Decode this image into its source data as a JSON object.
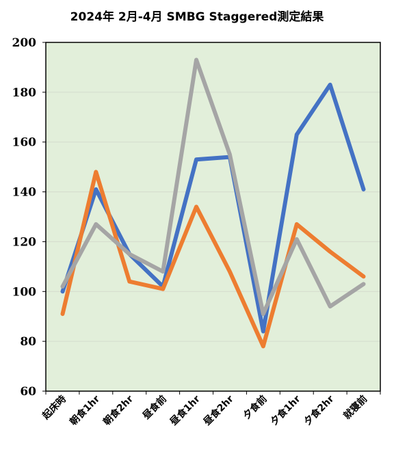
{
  "chart_data": {
    "type": "line",
    "title": "2024年 2月-4月 SMBG Staggered測定結果",
    "xlabel": "",
    "ylabel": "",
    "ylim": [
      60,
      200
    ],
    "yticks": [
      60,
      80,
      100,
      120,
      140,
      160,
      180,
      200
    ],
    "grid": true,
    "background": "#e2efda",
    "categories": [
      "起床時",
      "朝食1hr",
      "朝食2hr",
      "昼食前",
      "昼食1hr",
      "昼食2hr",
      "夕食前",
      "夕食1hr",
      "夕食2hr",
      "就寝前"
    ],
    "series": [
      {
        "color": "#4472c4",
        "values": [
          100,
          141,
          115,
          102,
          153,
          154,
          84,
          163,
          183,
          141
        ]
      },
      {
        "color": "#ed7d31",
        "values": [
          91,
          148,
          104,
          101,
          134,
          108,
          78,
          127,
          116,
          106
        ]
      },
      {
        "color": "#a5a5a5",
        "values": [
          102,
          127,
          115,
          108,
          193,
          155,
          91,
          121,
          94,
          103
        ]
      }
    ]
  }
}
